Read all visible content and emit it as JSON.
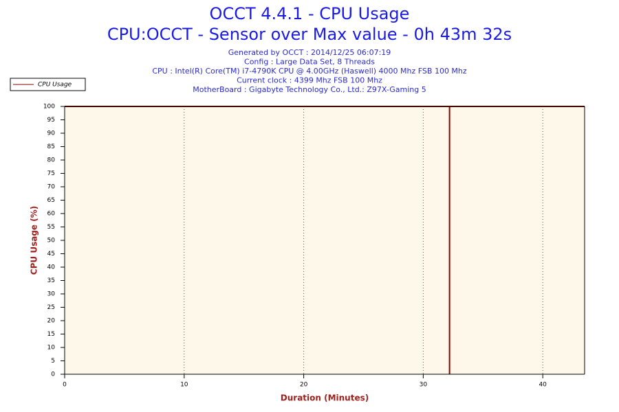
{
  "chart_data": {
    "type": "line",
    "title": "OCCT 4.4.1 - CPU Usage",
    "subtitle": "CPU:OCCT - Sensor over Max value - 0h 43m 32s",
    "info": [
      "Generated by OCCT : 2014/12/25 06:07:19",
      "Config : Large Data Set, 8 Threads",
      "CPU : Intel(R) Core(TM) i7-4790K CPU @ 4.00GHz (Haswell) 4000 Mhz FSB 100 Mhz",
      "Current clock : 4399 Mhz FSB 100 Mhz",
      "MotherBoard : Gigabyte Technology Co., Ltd.: Z97X-Gaming 5"
    ],
    "x_label": "Duration (Minutes)",
    "y_label": "CPU Usage (%)",
    "x": [
      0,
      32.2,
      32.2,
      32.2,
      43.5
    ],
    "series": [
      {
        "name": "CPU Usage",
        "color": "#8b0000",
        "values": [
          100,
          100,
          0,
          100,
          100
        ]
      }
    ],
    "xlim": [
      0,
      43.5
    ],
    "ylim": [
      0,
      100
    ],
    "xticks": [
      0,
      10,
      20,
      30,
      40
    ],
    "yticks": [
      0,
      5,
      10,
      15,
      20,
      25,
      30,
      35,
      40,
      45,
      50,
      55,
      60,
      65,
      70,
      75,
      80,
      85,
      90,
      95,
      100
    ],
    "grid": true,
    "legend": "upper left"
  }
}
